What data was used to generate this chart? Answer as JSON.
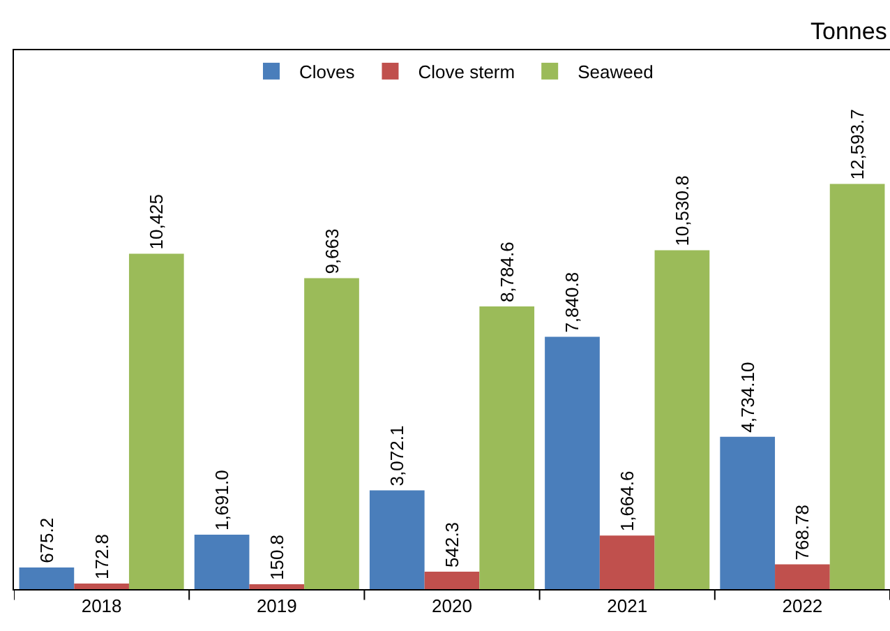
{
  "chart_data": {
    "type": "bar",
    "annotations": [
      "Tonnes"
    ],
    "categories": [
      "2018",
      "2019",
      "2020",
      "2021",
      "2022"
    ],
    "series": [
      {
        "name": "Cloves",
        "color": "#4a7ebb",
        "values": [
          675.2,
          1691.0,
          3072.1,
          7840.8,
          4734.1
        ],
        "value_labels": [
          "675.2",
          "1,691.0",
          "3,072.1",
          "7,840.8",
          "4,734.10"
        ]
      },
      {
        "name": "Clove sterm",
        "color": "#c0504d",
        "values": [
          172.8,
          150.8,
          542.3,
          1664.6,
          768.78
        ],
        "value_labels": [
          "172.8",
          "150.8",
          "542.3",
          "1,664.6",
          "768.78"
        ]
      },
      {
        "name": "Seaweed",
        "color": "#9bbb59",
        "values": [
          10425,
          9663,
          8784.6,
          10530.8,
          12593.7
        ],
        "value_labels": [
          "10,425",
          "9,663",
          "8,784.6",
          "10,530.8",
          "12,593.7"
        ]
      }
    ],
    "legend": "top"
  }
}
